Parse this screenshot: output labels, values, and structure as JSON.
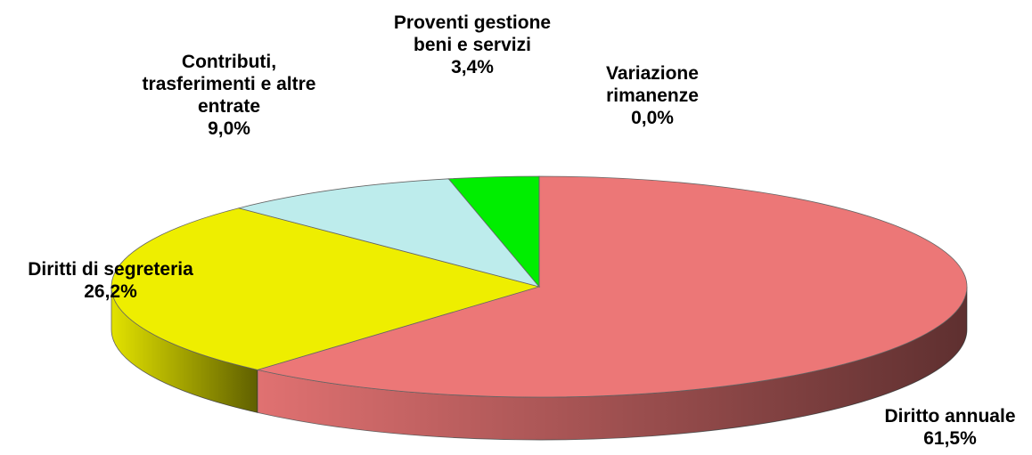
{
  "chart_data": {
    "type": "pie",
    "categories": [
      "Diritto annuale",
      "Diritti di segreteria",
      "Contributi, trasferimenti e altre entrate",
      "Proventi gestione beni e servizi",
      "Variazione rimanenze"
    ],
    "values": [
      61.5,
      26.2,
      9.0,
      3.4,
      0.0
    ],
    "value_labels": [
      "61,5%",
      "26,2%",
      "9,0%",
      "3,4%",
      "0,0%"
    ],
    "colors": [
      "#ec7777",
      "#eeee00",
      "#bdecec",
      "#00ee00",
      "#9999ff"
    ]
  }
}
